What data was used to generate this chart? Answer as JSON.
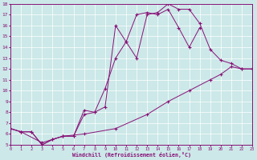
{
  "xlabel": "Windchill (Refroidissement éolien,°C)",
  "xlim": [
    0,
    23
  ],
  "ylim": [
    5,
    18
  ],
  "xticks": [
    0,
    1,
    2,
    3,
    4,
    5,
    6,
    7,
    8,
    9,
    10,
    11,
    12,
    13,
    14,
    15,
    16,
    17,
    18,
    19,
    20,
    21,
    22,
    23
  ],
  "yticks": [
    5,
    6,
    7,
    8,
    9,
    10,
    11,
    12,
    13,
    14,
    15,
    16,
    17,
    18
  ],
  "bg_color": "#cce8e8",
  "line_color": "#881177",
  "grid_color": "#ffffff",
  "line1_x": [
    0,
    1,
    2,
    3,
    4,
    5,
    6,
    7,
    8,
    9,
    10,
    11,
    12,
    13,
    14,
    15,
    16,
    17,
    18,
    19,
    20,
    21,
    22,
    23
  ],
  "line1_y": [
    6.5,
    6.2,
    6.2,
    5.0,
    5.5,
    5.8,
    5.8,
    8.2,
    8.0,
    10.2,
    13.0,
    14.5,
    13.0,
    17.0,
    17.2,
    18.0,
    17.5,
    17.5,
    16.2,
    13.8,
    12.8,
    12.5,
    12.0,
    12.0
  ],
  "line2_x": [
    0,
    1,
    2,
    3,
    4,
    5,
    6,
    7,
    8,
    9,
    10,
    11,
    12,
    13,
    14,
    15,
    16,
    17,
    18
  ],
  "line2_y": [
    6.5,
    6.2,
    6.2,
    5.0,
    5.5,
    5.8,
    5.8,
    7.8,
    8.0,
    8.5,
    16.0,
    14.5,
    17.0,
    17.2,
    17.0,
    17.5,
    15.8,
    14.0,
    15.8
  ],
  "line3_x": [
    0,
    1,
    3,
    5,
    7,
    10,
    13,
    15,
    17,
    19,
    20,
    21,
    22,
    23
  ],
  "line3_y": [
    6.5,
    6.2,
    5.2,
    5.8,
    6.0,
    6.5,
    7.8,
    9.0,
    10.0,
    11.0,
    11.5,
    12.2,
    12.0,
    12.0
  ]
}
